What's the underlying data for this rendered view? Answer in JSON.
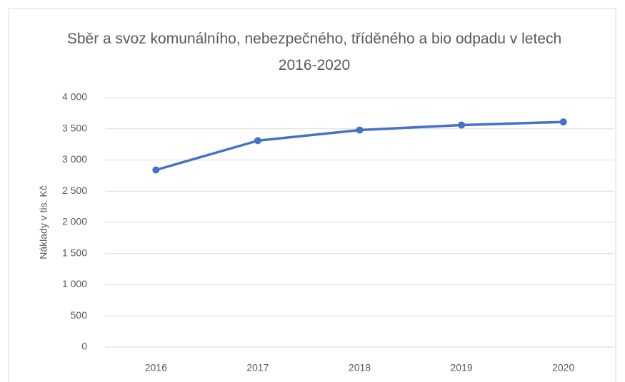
{
  "chart_data": {
    "type": "line",
    "title": "Sběr a svoz komunálního, nebezpečného, tříděného a bio odpadu v letech 2016-2020",
    "ylabel": "Náklady v tis. Kč",
    "categories": [
      "2016",
      "2017",
      "2018",
      "2019",
      "2020"
    ],
    "series": [
      {
        "name": "Náklady",
        "color": "#4472c4",
        "values": [
          2840,
          3310,
          3480,
          3560,
          3610
        ]
      }
    ],
    "ylim": [
      0,
      4000
    ],
    "yticks": [
      0,
      500,
      {
        "value": 1000,
        "label": "1 000"
      },
      {
        "value": 1500,
        "label": "1 500"
      },
      {
        "value": 2000,
        "label": "2 000"
      },
      {
        "value": 2500,
        "label": "2 500"
      },
      {
        "value": 3000,
        "label": "3 000"
      },
      {
        "value": 3500,
        "label": "3 500"
      },
      {
        "value": 4000,
        "label": "4 000"
      }
    ],
    "grid": true
  }
}
